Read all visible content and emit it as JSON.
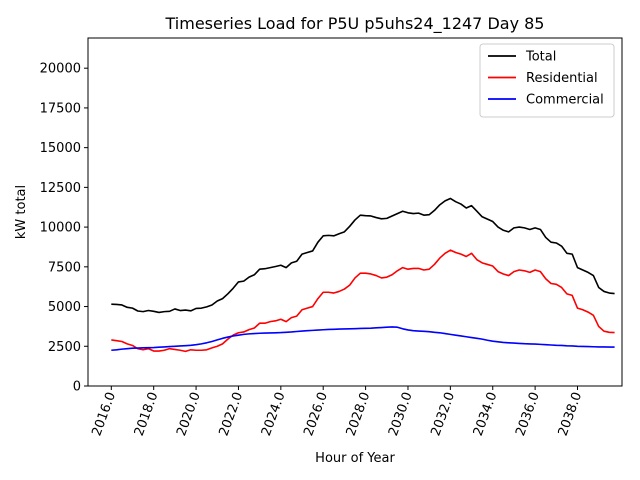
{
  "chart_data": {
    "type": "line",
    "title": "Timeseries Load for P5U p5uhs24_1247  Day 85",
    "xlabel": "Hour of Year",
    "ylabel": "kW total",
    "xlim": [
      2014.9,
      2040.1
    ],
    "ylim": [
      0,
      21900
    ],
    "x_ticks": [
      2016,
      2018,
      2020,
      2022,
      2024,
      2026,
      2028,
      2030,
      2032,
      2034,
      2036,
      2038
    ],
    "x_tick_labels": [
      "2016.0",
      "2018.0",
      "2020.0",
      "2022.0",
      "2024.0",
      "2026.0",
      "2028.0",
      "2030.0",
      "2032.0",
      "2034.0",
      "2036.0",
      "2038.0"
    ],
    "y_ticks": [
      0,
      2500,
      5000,
      7500,
      10000,
      12500,
      15000,
      17500,
      20000
    ],
    "y_tick_labels": [
      "0",
      "2500",
      "5000",
      "7500",
      "10000",
      "12500",
      "15000",
      "17500",
      "20000"
    ],
    "legend_position": "top-right",
    "x": [
      2016.0,
      2016.25,
      2016.5,
      2016.75,
      2017.0,
      2017.25,
      2017.5,
      2017.75,
      2018.0,
      2018.25,
      2018.5,
      2018.75,
      2019.0,
      2019.25,
      2019.5,
      2019.75,
      2020.0,
      2020.25,
      2020.5,
      2020.75,
      2021.0,
      2021.25,
      2021.5,
      2021.75,
      2022.0,
      2022.25,
      2022.5,
      2022.75,
      2023.0,
      2023.25,
      2023.5,
      2023.75,
      2024.0,
      2024.25,
      2024.5,
      2024.75,
      2025.0,
      2025.25,
      2025.5,
      2025.75,
      2026.0,
      2026.25,
      2026.5,
      2026.75,
      2027.0,
      2027.25,
      2027.5,
      2027.75,
      2028.0,
      2028.25,
      2028.5,
      2028.75,
      2029.0,
      2029.25,
      2029.5,
      2029.75,
      2030.0,
      2030.25,
      2030.5,
      2030.75,
      2031.0,
      2031.25,
      2031.5,
      2031.75,
      2032.0,
      2032.25,
      2032.5,
      2032.75,
      2033.0,
      2033.25,
      2033.5,
      2033.75,
      2034.0,
      2034.25,
      2034.5,
      2034.75,
      2035.0,
      2035.25,
      2035.5,
      2035.75,
      2036.0,
      2036.25,
      2036.5,
      2036.75,
      2037.0,
      2037.25,
      2037.5,
      2037.75,
      2038.0,
      2038.25,
      2038.5,
      2038.75,
      2039.0,
      2039.25,
      2039.5,
      2039.75
    ],
    "series": [
      {
        "name": "Total",
        "color": "#000000",
        "values": [
          5150,
          5130,
          5100,
          4950,
          4900,
          4720,
          4680,
          4750,
          4700,
          4630,
          4680,
          4700,
          4850,
          4750,
          4780,
          4730,
          4880,
          4900,
          4980,
          5100,
          5350,
          5500,
          5800,
          6150,
          6550,
          6600,
          6850,
          7000,
          7350,
          7380,
          7450,
          7520,
          7600,
          7450,
          7750,
          7850,
          8300,
          8400,
          8500,
          9050,
          9450,
          9480,
          9450,
          9580,
          9700,
          10050,
          10450,
          10750,
          10720,
          10700,
          10600,
          10520,
          10550,
          10700,
          10850,
          11000,
          10900,
          10850,
          10880,
          10750,
          10780,
          11050,
          11400,
          11650,
          11800,
          11600,
          11450,
          11200,
          11350,
          11000,
          10650,
          10500,
          10350,
          10000,
          9800,
          9700,
          9950,
          10000,
          9950,
          9850,
          9950,
          9850,
          9350,
          9050,
          9000,
          8800,
          8350,
          8300,
          7450,
          7300,
          7150,
          6950,
          6200,
          5950,
          5850,
          5820
        ]
      },
      {
        "name": "Residential",
        "color": "#ff0000",
        "values": [
          2900,
          2850,
          2800,
          2650,
          2550,
          2350,
          2280,
          2350,
          2200,
          2200,
          2250,
          2350,
          2300,
          2250,
          2180,
          2280,
          2250,
          2250,
          2280,
          2400,
          2500,
          2650,
          2950,
          3200,
          3350,
          3400,
          3550,
          3650,
          3950,
          3950,
          4050,
          4100,
          4200,
          4050,
          4300,
          4400,
          4800,
          4900,
          5000,
          5500,
          5900,
          5900,
          5850,
          5950,
          6100,
          6350,
          6800,
          7100,
          7100,
          7050,
          6950,
          6800,
          6850,
          7000,
          7250,
          7450,
          7350,
          7400,
          7400,
          7300,
          7350,
          7650,
          8050,
          8350,
          8550,
          8400,
          8300,
          8150,
          8350,
          7950,
          7750,
          7650,
          7550,
          7200,
          7050,
          6950,
          7200,
          7300,
          7250,
          7150,
          7300,
          7200,
          6750,
          6450,
          6400,
          6200,
          5800,
          5700,
          4900,
          4800,
          4650,
          4450,
          3750,
          3450,
          3380,
          3360
        ]
      },
      {
        "name": "Commercial",
        "color": "#0000ff",
        "values": [
          2250,
          2280,
          2320,
          2350,
          2380,
          2390,
          2400,
          2410,
          2420,
          2440,
          2460,
          2480,
          2500,
          2520,
          2540,
          2560,
          2600,
          2650,
          2720,
          2800,
          2900,
          3000,
          3080,
          3150,
          3200,
          3250,
          3280,
          3300,
          3320,
          3330,
          3340,
          3350,
          3360,
          3380,
          3400,
          3430,
          3460,
          3480,
          3500,
          3520,
          3540,
          3560,
          3570,
          3580,
          3590,
          3600,
          3610,
          3620,
          3630,
          3640,
          3660,
          3680,
          3700,
          3720,
          3700,
          3600,
          3530,
          3480,
          3460,
          3440,
          3420,
          3380,
          3350,
          3300,
          3250,
          3200,
          3150,
          3100,
          3050,
          3000,
          2950,
          2880,
          2820,
          2780,
          2740,
          2720,
          2700,
          2680,
          2660,
          2650,
          2640,
          2620,
          2600,
          2580,
          2560,
          2550,
          2530,
          2520,
          2500,
          2490,
          2480,
          2470,
          2460,
          2460,
          2450,
          2450
        ]
      }
    ]
  }
}
